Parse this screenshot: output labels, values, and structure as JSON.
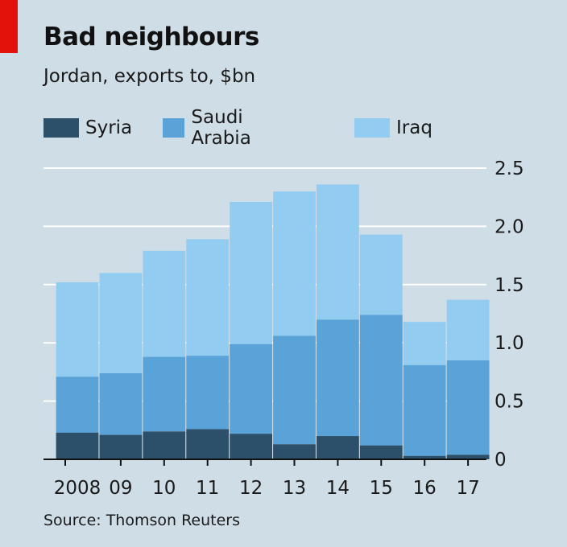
{
  "header": {
    "title": "Bad neighbours",
    "subtitle": "Jordan, exports to, $bn"
  },
  "footer": {
    "source": "Source: Thomson Reuters"
  },
  "colors": {
    "background": "#cfdde6",
    "accent": "#e3120b",
    "syria": "#2c5069",
    "saudi_arabia": "#5aa3d9",
    "iraq": "#92cdf1",
    "grid": "#ffffff"
  },
  "chart_data": {
    "type": "bar",
    "stacked": true,
    "categories": [
      "2008",
      "09",
      "10",
      "11",
      "12",
      "13",
      "14",
      "15",
      "16",
      "17"
    ],
    "series": [
      {
        "name": "Syria",
        "color": "#2c5069",
        "values": [
          0.23,
          0.21,
          0.24,
          0.26,
          0.22,
          0.13,
          0.2,
          0.12,
          0.03,
          0.04
        ]
      },
      {
        "name": "Saudi Arabia",
        "color": "#5aa3d9",
        "values": [
          0.48,
          0.53,
          0.64,
          0.63,
          0.77,
          0.93,
          1.0,
          1.12,
          0.78,
          0.81
        ]
      },
      {
        "name": "Iraq",
        "color": "#92cdf1",
        "values": [
          0.81,
          0.86,
          0.91,
          1.0,
          1.22,
          1.24,
          1.16,
          0.69,
          0.37,
          0.52
        ]
      }
    ],
    "ylim": [
      0,
      2.5
    ],
    "yticks": [
      0,
      0.5,
      1.0,
      1.5,
      2.0,
      2.5
    ],
    "ytick_labels": [
      "0",
      "0.5",
      "1.0",
      "1.5",
      "2.0",
      "2.5"
    ],
    "y_axis_side": "right",
    "grid": true,
    "legend": "top-left"
  }
}
